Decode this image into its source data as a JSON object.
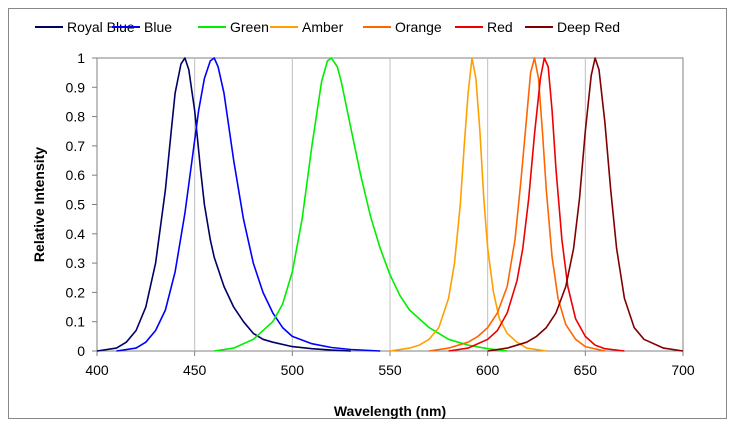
{
  "chart_data": {
    "type": "line",
    "title": "",
    "xlabel": "Wavelength (nm)",
    "ylabel": "Relative Intensity",
    "xlim": [
      400,
      700
    ],
    "ylim": [
      0,
      1
    ],
    "xticks": [
      "400",
      "450",
      "500",
      "550",
      "600",
      "650",
      "700"
    ],
    "yticks": [
      "0",
      "0.1",
      "0.2",
      "0.3",
      "0.4",
      "0.5",
      "0.6",
      "0.7",
      "0.8",
      "0.9",
      "1"
    ],
    "grid": "vertical",
    "legend_position": "top",
    "series": [
      {
        "name": "Royal Blue",
        "color": "#000066",
        "x": [
          400,
          410,
          415,
          420,
          425,
          430,
          435,
          438,
          440,
          443,
          445,
          447,
          450,
          453,
          455,
          458,
          460,
          465,
          470,
          475,
          480,
          485,
          490,
          500,
          510,
          520,
          530
        ],
        "y": [
          0,
          0.01,
          0.03,
          0.07,
          0.15,
          0.3,
          0.55,
          0.75,
          0.88,
          0.98,
          1.0,
          0.96,
          0.82,
          0.62,
          0.5,
          0.38,
          0.32,
          0.22,
          0.15,
          0.1,
          0.06,
          0.04,
          0.03,
          0.015,
          0.008,
          0.003,
          0
        ]
      },
      {
        "name": "Blue",
        "color": "#0000ff",
        "x": [
          410,
          420,
          425,
          430,
          435,
          440,
          445,
          448,
          452,
          455,
          458,
          460,
          462,
          465,
          470,
          475,
          480,
          485,
          490,
          495,
          500,
          510,
          520,
          530,
          545
        ],
        "y": [
          0,
          0.01,
          0.03,
          0.07,
          0.14,
          0.27,
          0.47,
          0.62,
          0.82,
          0.93,
          0.99,
          1.0,
          0.97,
          0.88,
          0.65,
          0.45,
          0.3,
          0.2,
          0.13,
          0.08,
          0.05,
          0.025,
          0.012,
          0.005,
          0
        ]
      },
      {
        "name": "Green",
        "color": "#00ee00",
        "x": [
          460,
          470,
          480,
          490,
          495,
          500,
          505,
          510,
          515,
          518,
          520,
          523,
          525,
          530,
          535,
          540,
          545,
          550,
          555,
          560,
          570,
          580,
          590,
          600,
          610
        ],
        "y": [
          0,
          0.01,
          0.04,
          0.1,
          0.16,
          0.27,
          0.45,
          0.7,
          0.92,
          0.99,
          1.0,
          0.97,
          0.92,
          0.76,
          0.6,
          0.46,
          0.35,
          0.26,
          0.19,
          0.14,
          0.08,
          0.04,
          0.02,
          0.008,
          0
        ]
      },
      {
        "name": "Amber",
        "color": "#ffa000",
        "x": [
          550,
          560,
          565,
          570,
          575,
          580,
          583,
          586,
          588,
          590,
          592,
          594,
          596,
          598,
          600,
          603,
          606,
          610,
          615,
          620,
          630
        ],
        "y": [
          0,
          0.01,
          0.02,
          0.04,
          0.08,
          0.18,
          0.3,
          0.5,
          0.7,
          0.88,
          1.0,
          0.93,
          0.75,
          0.52,
          0.35,
          0.2,
          0.11,
          0.06,
          0.03,
          0.01,
          0
        ]
      },
      {
        "name": "Orange",
        "color": "#ff6600",
        "x": [
          570,
          580,
          590,
          595,
          600,
          605,
          610,
          614,
          617,
          620,
          622,
          624,
          626,
          628,
          630,
          633,
          636,
          640,
          645,
          650,
          660
        ],
        "y": [
          0,
          0.01,
          0.03,
          0.05,
          0.08,
          0.13,
          0.22,
          0.38,
          0.58,
          0.8,
          0.95,
          1.0,
          0.93,
          0.75,
          0.55,
          0.32,
          0.18,
          0.09,
          0.04,
          0.015,
          0
        ]
      },
      {
        "name": "Red",
        "color": "#ee0000",
        "x": [
          580,
          590,
          600,
          605,
          610,
          615,
          618,
          621,
          624,
          627,
          629,
          631,
          633,
          635,
          638,
          641,
          645,
          650,
          655,
          660,
          670
        ],
        "y": [
          0,
          0.01,
          0.04,
          0.07,
          0.13,
          0.24,
          0.35,
          0.52,
          0.74,
          0.93,
          1.0,
          0.97,
          0.82,
          0.62,
          0.38,
          0.22,
          0.11,
          0.05,
          0.02,
          0.008,
          0
        ]
      },
      {
        "name": "Deep Red",
        "color": "#800000",
        "x": [
          600,
          610,
          620,
          625,
          630,
          635,
          640,
          644,
          647,
          650,
          653,
          655,
          657,
          660,
          663,
          666,
          670,
          675,
          680,
          690,
          700
        ],
        "y": [
          0,
          0.01,
          0.03,
          0.05,
          0.08,
          0.13,
          0.22,
          0.35,
          0.52,
          0.75,
          0.94,
          1.0,
          0.96,
          0.78,
          0.55,
          0.35,
          0.18,
          0.08,
          0.04,
          0.01,
          0
        ]
      }
    ]
  }
}
